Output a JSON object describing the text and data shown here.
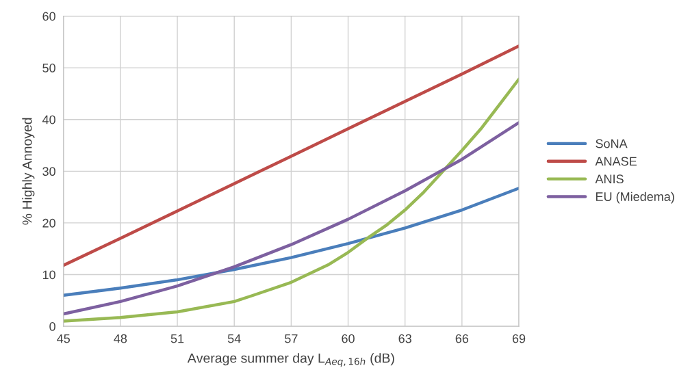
{
  "chart_data": {
    "type": "line",
    "xlabel": "Average summer day L$_{Aeq,16h}$ (dB)",
    "ylabel": "% Highly Annoyed",
    "xlim": [
      45,
      69
    ],
    "xticks": [
      45,
      48,
      51,
      54,
      57,
      60,
      63,
      66,
      69
    ],
    "ylim": [
      0,
      60
    ],
    "yticks": [
      0,
      10,
      20,
      30,
      40,
      50,
      60
    ],
    "grid": true,
    "legend": "right",
    "marker": "none",
    "line_style": "solid",
    "series": [
      {
        "name": "SoNA",
        "color": "#4a7ebb",
        "x": [
          45,
          48,
          51,
          54,
          57,
          60,
          63,
          66,
          69
        ],
        "values": [
          6.0,
          7.4,
          9.0,
          11.0,
          13.3,
          16.0,
          19.0,
          22.5,
          26.7
        ]
      },
      {
        "name": "ANASE",
        "color": "#be4b48",
        "x": [
          45,
          48,
          51,
          54,
          57,
          60,
          63,
          66,
          69
        ],
        "values": [
          11.8,
          17.0,
          22.3,
          27.6,
          32.9,
          38.2,
          43.5,
          48.8,
          54.2
        ]
      },
      {
        "name": "ANIS",
        "color": "#98b954",
        "x": [
          45,
          48,
          51,
          54,
          55,
          57,
          59,
          60,
          61,
          62,
          63,
          64,
          65,
          66,
          67,
          68,
          69
        ],
        "values": [
          1.0,
          1.7,
          2.8,
          4.8,
          6.0,
          8.5,
          12.0,
          14.3,
          17.0,
          19.5,
          22.5,
          26.0,
          30.0,
          34.0,
          38.2,
          43.0,
          47.8
        ]
      },
      {
        "name": "EU (Miedema)",
        "color": "#7d60a0",
        "x": [
          45,
          48,
          51,
          54,
          57,
          60,
          63,
          66,
          69
        ],
        "values": [
          2.4,
          4.8,
          7.8,
          11.5,
          15.8,
          20.7,
          26.2,
          32.3,
          39.4
        ]
      }
    ]
  }
}
